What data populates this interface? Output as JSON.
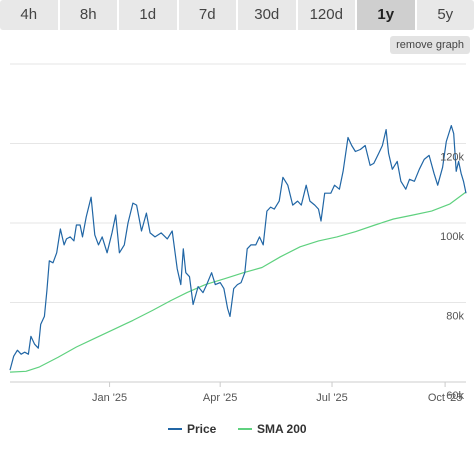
{
  "range_tabs": [
    {
      "label": "4h",
      "active": false
    },
    {
      "label": "8h",
      "active": false
    },
    {
      "label": "1d",
      "active": false
    },
    {
      "label": "7d",
      "active": false
    },
    {
      "label": "30d",
      "active": false
    },
    {
      "label": "120d",
      "active": false
    },
    {
      "label": "1y",
      "active": true
    },
    {
      "label": "5y",
      "active": false
    }
  ],
  "remove_graph_label": "remove graph",
  "chart_data": {
    "type": "line",
    "title": "",
    "xlabel": "",
    "ylabel": "",
    "ylim": [
      60000,
      140000
    ],
    "y_ticks": [
      {
        "value": 60000,
        "label": "60k"
      },
      {
        "value": 80000,
        "label": "80k"
      },
      {
        "value": 100000,
        "label": "100k"
      },
      {
        "value": 120000,
        "label": "120k"
      }
    ],
    "xlim": [
      "2024-10-12",
      "2025-10-18"
    ],
    "x_ticks": [
      {
        "date": "2025-01-01",
        "label": "Jan '25"
      },
      {
        "date": "2025-04-01",
        "label": "Apr '25"
      },
      {
        "date": "2025-07-01",
        "label": "Jul '25"
      },
      {
        "date": "2025-10-01",
        "label": "Oct '25"
      }
    ],
    "grid": true,
    "legend_position": "bottom",
    "series": [
      {
        "name": "Price",
        "color": "#2166a5",
        "points": [
          [
            "2024-10-12",
            63000
          ],
          [
            "2024-10-15",
            66500
          ],
          [
            "2024-10-18",
            68000
          ],
          [
            "2024-10-21",
            67000
          ],
          [
            "2024-10-24",
            67500
          ],
          [
            "2024-10-27",
            67000
          ],
          [
            "2024-10-29",
            71500
          ],
          [
            "2024-11-01",
            69500
          ],
          [
            "2024-11-04",
            68500
          ],
          [
            "2024-11-06",
            74500
          ],
          [
            "2024-11-09",
            76500
          ],
          [
            "2024-11-11",
            83000
          ],
          [
            "2024-11-13",
            90500
          ],
          [
            "2024-11-16",
            90000
          ],
          [
            "2024-11-19",
            92500
          ],
          [
            "2024-11-22",
            98500
          ],
          [
            "2024-11-25",
            94500
          ],
          [
            "2024-11-27",
            96000
          ],
          [
            "2024-11-30",
            96500
          ],
          [
            "2024-12-03",
            95500
          ],
          [
            "2024-12-05",
            99500
          ],
          [
            "2024-12-08",
            99500
          ],
          [
            "2024-12-10",
            96500
          ],
          [
            "2024-12-13",
            101500
          ],
          [
            "2024-12-17",
            106500
          ],
          [
            "2024-12-20",
            97000
          ],
          [
            "2024-12-23",
            94500
          ],
          [
            "2024-12-26",
            96500
          ],
          [
            "2024-12-30",
            92500
          ],
          [
            "2025-01-03",
            97500
          ],
          [
            "2025-01-06",
            102000
          ],
          [
            "2025-01-09",
            92500
          ],
          [
            "2025-01-13",
            94500
          ],
          [
            "2025-01-16",
            100000
          ],
          [
            "2025-01-20",
            105000
          ],
          [
            "2025-01-23",
            104500
          ],
          [
            "2025-01-27",
            98000
          ],
          [
            "2025-01-31",
            102500
          ],
          [
            "2025-02-03",
            97500
          ],
          [
            "2025-02-07",
            96500
          ],
          [
            "2025-02-12",
            97500
          ],
          [
            "2025-02-17",
            96000
          ],
          [
            "2025-02-21",
            98000
          ],
          [
            "2025-02-25",
            88500
          ],
          [
            "2025-02-28",
            84500
          ],
          [
            "2025-03-02",
            93500
          ],
          [
            "2025-03-04",
            87500
          ],
          [
            "2025-03-07",
            86500
          ],
          [
            "2025-03-10",
            79500
          ],
          [
            "2025-03-14",
            84000
          ],
          [
            "2025-03-18",
            82500
          ],
          [
            "2025-03-21",
            84500
          ],
          [
            "2025-03-25",
            87500
          ],
          [
            "2025-03-28",
            84500
          ],
          [
            "2025-04-01",
            85000
          ],
          [
            "2025-04-04",
            83500
          ],
          [
            "2025-04-07",
            78500
          ],
          [
            "2025-04-09",
            76500
          ],
          [
            "2025-04-12",
            83500
          ],
          [
            "2025-04-15",
            84500
          ],
          [
            "2025-04-18",
            85000
          ],
          [
            "2025-04-21",
            87500
          ],
          [
            "2025-04-23",
            93500
          ],
          [
            "2025-04-26",
            94500
          ],
          [
            "2025-04-30",
            94500
          ],
          [
            "2025-05-03",
            96500
          ],
          [
            "2025-05-06",
            94500
          ],
          [
            "2025-05-09",
            103000
          ],
          [
            "2025-05-12",
            104000
          ],
          [
            "2025-05-15",
            103500
          ],
          [
            "2025-05-19",
            105500
          ],
          [
            "2025-05-22",
            111500
          ],
          [
            "2025-05-26",
            109500
          ],
          [
            "2025-05-30",
            104500
          ],
          [
            "2025-06-03",
            105500
          ],
          [
            "2025-06-06",
            104500
          ],
          [
            "2025-06-10",
            109500
          ],
          [
            "2025-06-13",
            105500
          ],
          [
            "2025-06-17",
            104500
          ],
          [
            "2025-06-20",
            103500
          ],
          [
            "2025-06-22",
            100500
          ],
          [
            "2025-06-25",
            107500
          ],
          [
            "2025-06-30",
            107500
          ],
          [
            "2025-07-03",
            109500
          ],
          [
            "2025-07-07",
            108500
          ],
          [
            "2025-07-10",
            113000
          ],
          [
            "2025-07-14",
            121500
          ],
          [
            "2025-07-17",
            119500
          ],
          [
            "2025-07-20",
            118000
          ],
          [
            "2025-07-24",
            118500
          ],
          [
            "2025-07-28",
            119500
          ],
          [
            "2025-08-01",
            114500
          ],
          [
            "2025-08-04",
            115000
          ],
          [
            "2025-08-08",
            117500
          ],
          [
            "2025-08-11",
            119500
          ],
          [
            "2025-08-14",
            123500
          ],
          [
            "2025-08-16",
            117500
          ],
          [
            "2025-08-19",
            113500
          ],
          [
            "2025-08-23",
            115500
          ],
          [
            "2025-08-26",
            110500
          ],
          [
            "2025-08-30",
            108500
          ],
          [
            "2025-09-02",
            111000
          ],
          [
            "2025-09-06",
            110500
          ],
          [
            "2025-09-10",
            113500
          ],
          [
            "2025-09-14",
            116000
          ],
          [
            "2025-09-18",
            117000
          ],
          [
            "2025-09-22",
            112500
          ],
          [
            "2025-09-25",
            109500
          ],
          [
            "2025-09-29",
            114000
          ],
          [
            "2025-10-02",
            120500
          ],
          [
            "2025-10-06",
            124500
          ],
          [
            "2025-10-08",
            122500
          ],
          [
            "2025-10-10",
            113000
          ],
          [
            "2025-10-12",
            115500
          ],
          [
            "2025-10-14",
            112500
          ],
          [
            "2025-10-16",
            110500
          ],
          [
            "2025-10-18",
            107500
          ]
        ]
      },
      {
        "name": "SMA 200",
        "color": "#5fd17f",
        "points": [
          [
            "2024-10-12",
            62500
          ],
          [
            "2024-10-25",
            62700
          ],
          [
            "2024-11-05",
            63800
          ],
          [
            "2024-11-20",
            66200
          ],
          [
            "2024-12-05",
            68800
          ],
          [
            "2024-12-20",
            71000
          ],
          [
            "2025-01-05",
            73300
          ],
          [
            "2025-01-20",
            75500
          ],
          [
            "2025-02-05",
            78000
          ],
          [
            "2025-02-20",
            80500
          ],
          [
            "2025-03-05",
            82500
          ],
          [
            "2025-03-20",
            84500
          ],
          [
            "2025-04-05",
            86000
          ],
          [
            "2025-04-20",
            87500
          ],
          [
            "2025-05-05",
            88800
          ],
          [
            "2025-05-20",
            91500
          ],
          [
            "2025-06-05",
            94000
          ],
          [
            "2025-06-20",
            95500
          ],
          [
            "2025-07-05",
            96500
          ],
          [
            "2025-07-20",
            97800
          ],
          [
            "2025-08-05",
            99500
          ],
          [
            "2025-08-20",
            101000
          ],
          [
            "2025-09-05",
            102000
          ],
          [
            "2025-09-20",
            103000
          ],
          [
            "2025-10-05",
            104800
          ],
          [
            "2025-10-18",
            107800
          ]
        ]
      }
    ]
  }
}
